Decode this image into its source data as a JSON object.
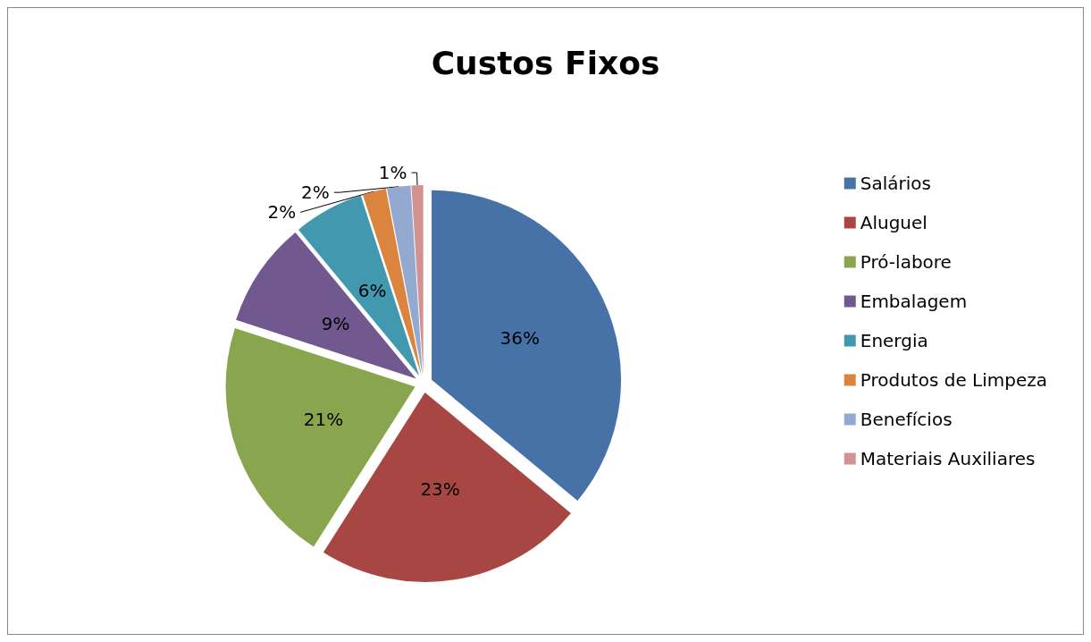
{
  "chart_data": {
    "type": "pie",
    "title": "Custos Fixos",
    "categories": [
      "Salários",
      "Aluguel",
      "Pró-labore",
      "Embalagem",
      "Energia",
      "Produtos de Limpeza",
      "Benefícios",
      "Materiais Auxiliares"
    ],
    "values": [
      36,
      23,
      21,
      9,
      6,
      2,
      2,
      1
    ],
    "value_labels": [
      "36%",
      "23%",
      "21%",
      "9%",
      "6%",
      "2%",
      "2%",
      "1%"
    ],
    "colors": [
      "#4672a8",
      "#a84644",
      "#89a54e",
      "#71588f",
      "#4198af",
      "#db843d",
      "#93a9cf",
      "#d19392"
    ],
    "legend": "right"
  }
}
